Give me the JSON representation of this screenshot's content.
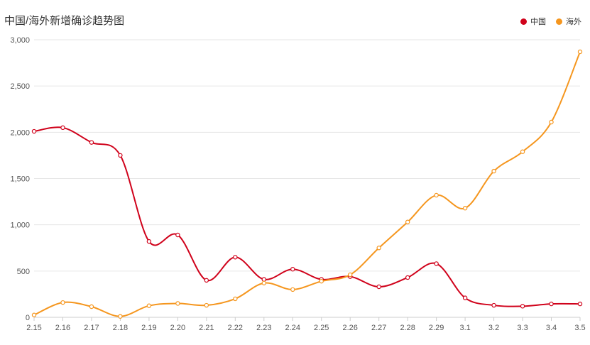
{
  "chart_data": {
    "type": "line",
    "title": "中国/海外新增确诊趋势图",
    "categories": [
      "2.15",
      "2.16",
      "2.17",
      "2.18",
      "2.19",
      "2.20",
      "2.21",
      "2.22",
      "2.23",
      "2.24",
      "2.25",
      "2.26",
      "2.27",
      "2.28",
      "2.29",
      "3.1",
      "3.2",
      "3.3",
      "3.4",
      "3.5"
    ],
    "series": [
      {
        "name": "中国",
        "color": "#d0021b",
        "values": [
          2010,
          2050,
          1890,
          1750,
          820,
          890,
          400,
          650,
          410,
          520,
          410,
          440,
          330,
          430,
          580,
          210,
          130,
          120,
          145,
          145
        ]
      },
      {
        "name": "海外",
        "color": "#f5961e",
        "values": [
          25,
          160,
          115,
          10,
          125,
          150,
          130,
          200,
          370,
          300,
          390,
          460,
          750,
          1030,
          1320,
          1180,
          1580,
          1790,
          2110,
          2870
        ]
      }
    ],
    "y_ticks": [
      "0",
      "500",
      "1,000",
      "1,500",
      "2,000",
      "2,500",
      "3,000"
    ],
    "ylim": [
      0,
      3000
    ],
    "grid": true,
    "legend_position": "top-right",
    "xlabel": "",
    "ylabel": ""
  }
}
